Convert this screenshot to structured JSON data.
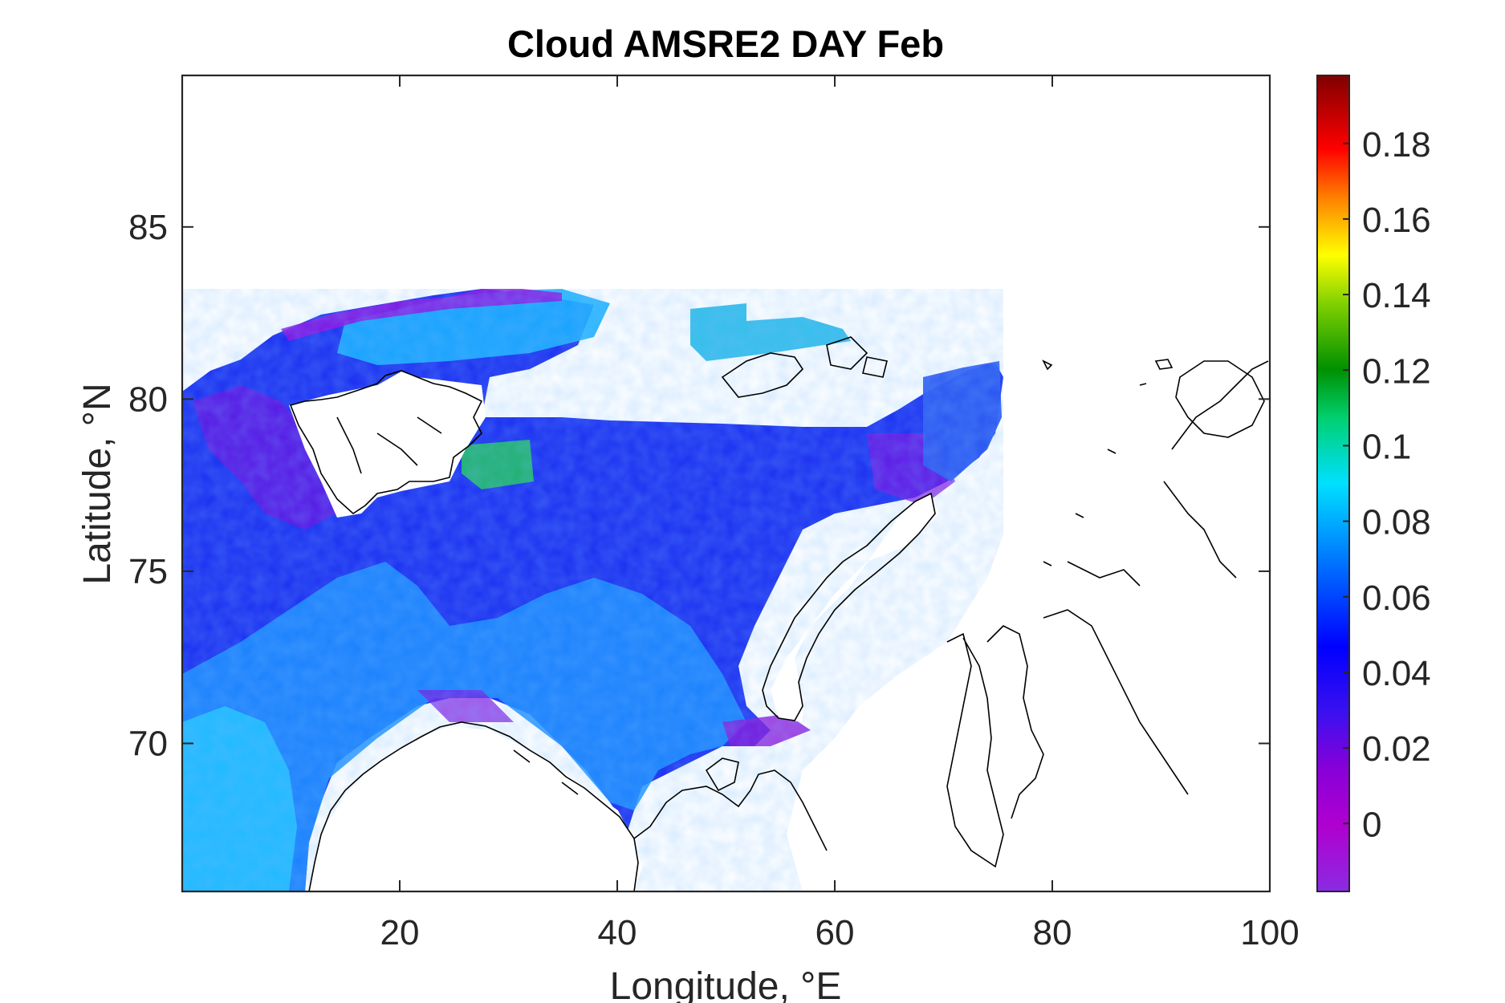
{
  "chart_data": {
    "type": "heatmap",
    "title": "Cloud AMSRE2 DAY Feb",
    "xlabel": "Longitude, °E",
    "ylabel": "Latitude, °N",
    "xlim": [
      0,
      100
    ],
    "ylim": [
      65.7,
      89.4
    ],
    "xticks": [
      20,
      40,
      60,
      80,
      100
    ],
    "yticks": [
      70,
      75,
      80,
      85
    ],
    "xtick_labels": [
      "20",
      "40",
      "60",
      "80",
      "100"
    ],
    "ytick_labels": [
      "70",
      "75",
      "80",
      "85"
    ],
    "colorbar": {
      "clim": [
        -0.018,
        0.198
      ],
      "ticks": [
        0,
        0.02,
        0.04,
        0.06,
        0.08,
        0.1,
        0.12,
        0.14,
        0.16,
        0.18
      ],
      "tick_labels": [
        "0",
        "0.02",
        "0.04",
        "0.06",
        "0.08",
        "0.1",
        "0.12",
        "0.14",
        "0.16",
        "0.18"
      ],
      "colormap": "jet-like (violet → blue → cyan → green → yellow → red → dark red)"
    },
    "field_summary": {
      "Norwegian Sea (0–12°E, 66–72°N)": 0.065,
      "Fram Strait / west of Svalbard": 0.035,
      "Barents Sea central": 0.05,
      "Svalbard north edge": 0.07,
      "Franz Josef Land area": 0.09,
      "north of Novaya Zemlya": 0.03,
      "Kara Sea / Siberia land": null
    },
    "grid": false
  }
}
